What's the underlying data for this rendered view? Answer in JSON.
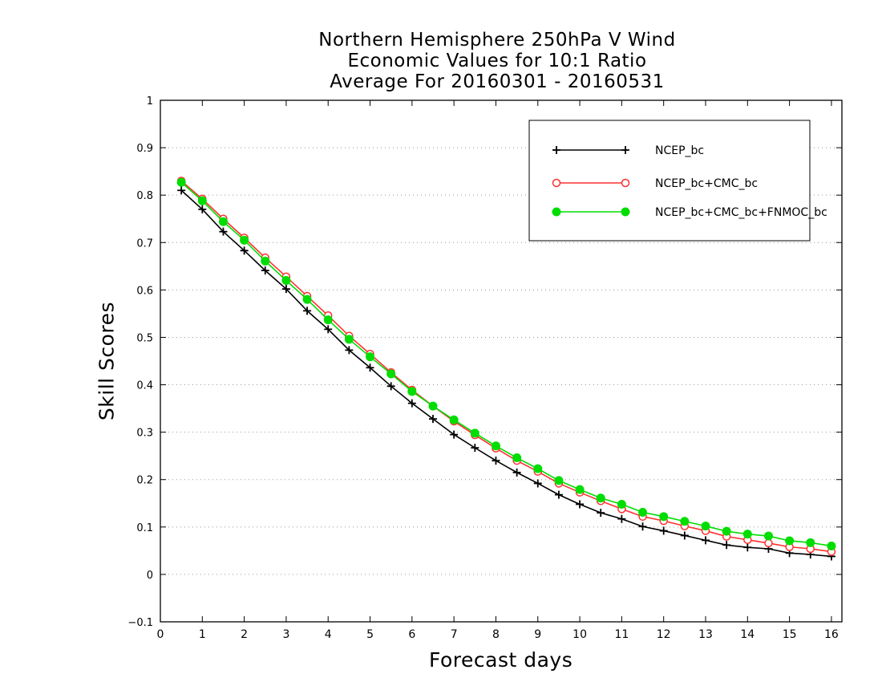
{
  "chart_data": {
    "type": "line",
    "title": [
      "Northern Hemisphere 250hPa V Wind",
      "Economic Values for 10:1 Ratio",
      "Average For 20160301 - 20160531"
    ],
    "xlabel": "Forecast days",
    "ylabel": "Skill Scores",
    "xlim": [
      0,
      16.25
    ],
    "ylim": [
      -0.1,
      1
    ],
    "xticks": [
      0,
      1,
      2,
      3,
      4,
      5,
      6,
      7,
      8,
      9,
      10,
      11,
      12,
      13,
      14,
      15,
      16
    ],
    "yticks": [
      -0.1,
      0,
      0.1,
      0.2,
      0.3,
      0.4,
      0.5,
      0.6,
      0.7,
      0.8,
      0.9,
      1
    ],
    "grid": "horizontal-dotted",
    "legend_position": "top-right",
    "x": [
      0.5,
      1,
      1.5,
      2,
      2.5,
      3,
      3.5,
      4,
      4.5,
      5,
      5.5,
      6,
      6.5,
      7,
      7.5,
      8,
      8.5,
      9,
      9.5,
      10,
      10.5,
      11,
      11.5,
      12,
      12.5,
      13,
      13.5,
      14,
      14.5,
      15,
      15.5,
      16
    ],
    "series": [
      {
        "name": "NCEP_bc",
        "color": "#000000",
        "marker": "plus",
        "values": [
          0.81,
          0.77,
          0.723,
          0.683,
          0.641,
          0.602,
          0.556,
          0.517,
          0.473,
          0.436,
          0.397,
          0.361,
          0.328,
          0.295,
          0.267,
          0.24,
          0.215,
          0.192,
          0.168,
          0.148,
          0.13,
          0.117,
          0.101,
          0.092,
          0.082,
          0.072,
          0.062,
          0.057,
          0.054,
          0.045,
          0.042,
          0.038
        ]
      },
      {
        "name": "NCEP_bc+CMC_bc",
        "color": "#ff3030",
        "marker": "open-circle",
        "values": [
          0.83,
          0.792,
          0.75,
          0.71,
          0.668,
          0.628,
          0.587,
          0.546,
          0.503,
          0.465,
          0.426,
          0.389,
          0.355,
          0.323,
          0.294,
          0.266,
          0.24,
          0.217,
          0.192,
          0.173,
          0.155,
          0.138,
          0.122,
          0.113,
          0.102,
          0.092,
          0.08,
          0.073,
          0.066,
          0.058,
          0.054,
          0.048
        ]
      },
      {
        "name": "NCEP_bc+CMC_bc+FNMOC_bc",
        "color": "#00dd00",
        "marker": "filled-circle",
        "values": [
          0.827,
          0.788,
          0.744,
          0.705,
          0.661,
          0.62,
          0.58,
          0.537,
          0.496,
          0.459,
          0.423,
          0.386,
          0.355,
          0.326,
          0.298,
          0.271,
          0.246,
          0.223,
          0.198,
          0.179,
          0.161,
          0.148,
          0.131,
          0.122,
          0.112,
          0.102,
          0.091,
          0.085,
          0.081,
          0.071,
          0.067,
          0.06
        ]
      }
    ]
  }
}
